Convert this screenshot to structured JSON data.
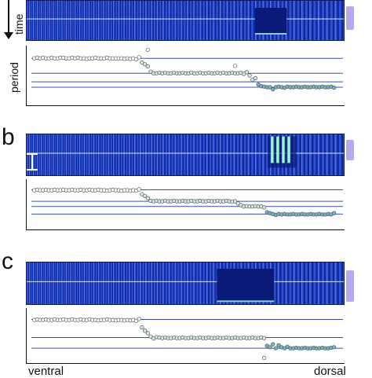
{
  "figure": {
    "panels": [
      {
        "letter": "",
        "time_label": "time",
        "period_label": "period",
        "stripe_count": 120,
        "perturbation": {
          "style": "dark-block"
        },
        "chart_data": {
          "type": "scatter",
          "x_label": "",
          "y_label": "period",
          "grid": "horizontal reference lines",
          "series": [
            {
              "group": "anterior",
              "x": [
                1,
                2,
                3,
                4,
                5,
                6,
                7,
                8,
                9,
                10,
                11,
                12,
                13,
                14,
                15,
                16,
                17,
                18,
                19,
                20,
                21,
                22,
                23,
                24,
                25,
                26,
                27,
                28,
                29,
                30,
                31,
                32,
                33,
                34,
                35,
                36,
                37
              ],
              "y": [
                0.18,
                0.17,
                0.18,
                0.17,
                0.18,
                0.18,
                0.17,
                0.18,
                0.18,
                0.17,
                0.17,
                0.18,
                0.18,
                0.17,
                0.18,
                0.17,
                0.18,
                0.18,
                0.19,
                0.18,
                0.18,
                0.17,
                0.18,
                0.18,
                0.18,
                0.17,
                0.18,
                0.18,
                0.18,
                0.18,
                0.18,
                0.19,
                0.18,
                0.19,
                0.18,
                0.2,
                0.16
              ]
            },
            {
              "group": "middle",
              "x": [
                38,
                39,
                40,
                41,
                42,
                43,
                44,
                45,
                46,
                47,
                48,
                49,
                50,
                51,
                52,
                53,
                54,
                55,
                56,
                57,
                58,
                59,
                60,
                61,
                62,
                63,
                64,
                65,
                66,
                67,
                68,
                69,
                70,
                71,
                72,
                73,
                74,
                75,
                76,
                77
              ],
              "y": [
                0.26,
                0.29,
                0.33,
                0.43,
                0.46,
                0.46,
                0.45,
                0.46,
                0.45,
                0.46,
                0.46,
                0.45,
                0.46,
                0.46,
                0.45,
                0.46,
                0.46,
                0.45,
                0.46,
                0.46,
                0.45,
                0.46,
                0.46,
                0.45,
                0.46,
                0.46,
                0.45,
                0.46,
                0.45,
                0.46,
                0.46,
                0.45,
                0.46,
                0.46,
                0.45,
                0.47,
                0.44,
                0.5,
                0.58,
                0.55
              ]
            },
            {
              "group": "posterior",
              "x": [
                78,
                79,
                80,
                81,
                82,
                83,
                84,
                85,
                86,
                87,
                88,
                89,
                90,
                91,
                92,
                93,
                94,
                95,
                96,
                97,
                98,
                99,
                100,
                101,
                102,
                103,
                104
              ],
              "y": [
                0.67,
                0.7,
                0.71,
                0.72,
                0.72,
                0.76,
                0.72,
                0.71,
                0.72,
                0.73,
                0.71,
                0.72,
                0.72,
                0.71,
                0.72,
                0.72,
                0.71,
                0.72,
                0.72,
                0.71,
                0.72,
                0.72,
                0.71,
                0.72,
                0.72,
                0.71,
                0.73
              ]
            },
            {
              "group": "outlier",
              "x": [
                40,
                70
              ],
              "y": [
                0.02,
                0.32
              ]
            }
          ],
          "reference_lines": [
            0.18,
            0.46,
            0.62,
            0.72
          ],
          "xlim": [
            0,
            106
          ],
          "ylim": [
            0,
            1
          ]
        }
      },
      {
        "letter": "b",
        "scale_bar": true,
        "stripe_count": 120,
        "perturbation": {
          "style": "bright-bars"
        },
        "chart_data": {
          "type": "scatter",
          "x_label": "",
          "y_label": "",
          "grid": "horizontal reference lines",
          "series": [
            {
              "group": "anterior",
              "x": [
                1,
                2,
                3,
                4,
                5,
                6,
                7,
                8,
                9,
                10,
                11,
                12,
                13,
                14,
                15,
                16,
                17,
                18,
                19,
                20,
                21,
                22,
                23,
                24,
                25,
                26,
                27,
                28,
                29,
                30,
                31,
                32,
                33,
                34,
                35,
                36,
                37
              ],
              "y": [
                0.18,
                0.17,
                0.18,
                0.18,
                0.17,
                0.18,
                0.18,
                0.17,
                0.18,
                0.18,
                0.17,
                0.18,
                0.18,
                0.17,
                0.18,
                0.18,
                0.17,
                0.18,
                0.18,
                0.17,
                0.18,
                0.18,
                0.17,
                0.18,
                0.18,
                0.19,
                0.18,
                0.17,
                0.18,
                0.18,
                0.19,
                0.18,
                0.18,
                0.19,
                0.18,
                0.19,
                0.16
              ]
            },
            {
              "group": "middle",
              "x": [
                38,
                39,
                40,
                41,
                42,
                43,
                44,
                45,
                46,
                47,
                48,
                49,
                50,
                51,
                52,
                53,
                54,
                55,
                56,
                57,
                58,
                59,
                60,
                61,
                62,
                63,
                64,
                65,
                66,
                67,
                68,
                69,
                70,
                71,
                72,
                73,
                74,
                75,
                76,
                77,
                78,
                79,
                80
              ],
              "y": [
                0.27,
                0.31,
                0.36,
                0.42,
                0.43,
                0.42,
                0.43,
                0.43,
                0.42,
                0.43,
                0.43,
                0.42,
                0.43,
                0.43,
                0.42,
                0.43,
                0.43,
                0.42,
                0.43,
                0.43,
                0.42,
                0.43,
                0.43,
                0.42,
                0.43,
                0.43,
                0.42,
                0.43,
                0.43,
                0.42,
                0.43,
                0.44,
                0.43,
                0.48,
                0.52,
                0.55,
                0.54,
                0.55,
                0.55,
                0.54,
                0.55,
                0.55,
                0.57
              ]
            },
            {
              "group": "posterior",
              "x": [
                81,
                82,
                83,
                84,
                85,
                86,
                87,
                88,
                89,
                90,
                91,
                92,
                93,
                94,
                95,
                96,
                97,
                98,
                99,
                100,
                101,
                102,
                103,
                104
              ],
              "y": [
                0.68,
                0.7,
                0.72,
                0.74,
                0.72,
                0.73,
                0.72,
                0.73,
                0.73,
                0.72,
                0.73,
                0.73,
                0.72,
                0.73,
                0.73,
                0.72,
                0.73,
                0.73,
                0.72,
                0.73,
                0.73,
                0.72,
                0.73,
                0.7
              ]
            }
          ],
          "reference_lines": [
            0.17,
            0.43,
            0.55,
            0.72
          ],
          "xlim": [
            0,
            106
          ],
          "ylim": [
            0,
            1
          ]
        }
      },
      {
        "letter": "c",
        "stripe_count": 120,
        "perturbation": {
          "style": "dark-block"
        },
        "chart_data": {
          "type": "scatter",
          "x_label": "",
          "y_label": "",
          "grid": "horizontal reference lines",
          "series": [
            {
              "group": "anterior",
              "x": [
                1,
                2,
                3,
                4,
                5,
                6,
                7,
                8,
                9,
                10,
                11,
                12,
                13,
                14,
                15,
                16,
                17,
                18,
                19,
                20,
                21,
                22,
                23,
                24,
                25,
                26,
                27,
                28,
                29,
                30,
                31,
                32,
                33,
                34,
                35,
                36,
                37
              ],
              "y": [
                0.18,
                0.17,
                0.18,
                0.18,
                0.17,
                0.18,
                0.18,
                0.17,
                0.18,
                0.18,
                0.17,
                0.18,
                0.18,
                0.17,
                0.18,
                0.18,
                0.17,
                0.18,
                0.18,
                0.17,
                0.18,
                0.18,
                0.19,
                0.18,
                0.18,
                0.17,
                0.18,
                0.18,
                0.19,
                0.18,
                0.18,
                0.19,
                0.18,
                0.19,
                0.18,
                0.2,
                0.16
              ]
            },
            {
              "group": "middle",
              "x": [
                38,
                39,
                40,
                41,
                42,
                43,
                44,
                45,
                46,
                47,
                48,
                49,
                50,
                51,
                52,
                53,
                54,
                55,
                56,
                57,
                58,
                59,
                60,
                61,
                62,
                63,
                64,
                65,
                66,
                67,
                68,
                69,
                70,
                71,
                72,
                73,
                74,
                75,
                76,
                77,
                78,
                79,
                80
              ],
              "y": [
                0.33,
                0.4,
                0.45,
                0.52,
                0.56,
                0.53,
                0.54,
                0.55,
                0.54,
                0.55,
                0.55,
                0.54,
                0.55,
                0.55,
                0.54,
                0.55,
                0.55,
                0.54,
                0.55,
                0.55,
                0.54,
                0.55,
                0.55,
                0.54,
                0.55,
                0.55,
                0.54,
                0.55,
                0.55,
                0.54,
                0.55,
                0.55,
                0.54,
                0.55,
                0.55,
                0.54,
                0.55,
                0.55,
                0.54,
                0.55,
                0.55,
                0.54,
                0.55
              ]
            },
            {
              "group": "posterior",
              "x": [
                81,
                82,
                83,
                84,
                85,
                86,
                87,
                88,
                89,
                90,
                91,
                92,
                93,
                94,
                95,
                96,
                97,
                98,
                99,
                100,
                101,
                102,
                103,
                104
              ],
              "y": [
                0.71,
                0.74,
                0.68,
                0.76,
                0.7,
                0.74,
                0.76,
                0.73,
                0.76,
                0.76,
                0.75,
                0.76,
                0.76,
                0.75,
                0.76,
                0.76,
                0.75,
                0.76,
                0.76,
                0.75,
                0.76,
                0.76,
                0.75,
                0.74
              ]
            },
            {
              "group": "outlier",
              "x": [
                80
              ],
              "y": [
                0.96
              ]
            }
          ],
          "reference_lines": [
            0.17,
            0.54,
            0.76
          ],
          "xlim": [
            0,
            106
          ],
          "ylim": [
            0,
            1
          ]
        }
      }
    ],
    "bottom_left_label": "ventral",
    "bottom_right_label": "dorsal",
    "colors": {
      "kymo_dark": "#0e1f8a",
      "kymo_mid": "#2c52d6",
      "kymo_light": "#7ea0ff",
      "dot_fill_anterior": "#ffffff",
      "dot_fill_middle": "#cfe9e4",
      "dot_fill_posterior": "#6fb6c2",
      "dot_stroke": "#555555",
      "ref_line": "#3a4fb8",
      "legend_bar": "#b9a7ef"
    }
  }
}
